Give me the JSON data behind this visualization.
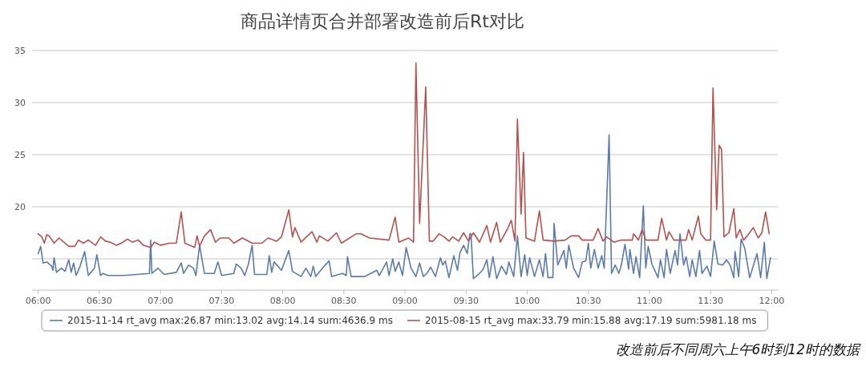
{
  "chart_data": {
    "type": "line",
    "title": "商品详情页合并部署改造前后Rt对比",
    "xlim": [
      5.95,
      12.05
    ],
    "ylim": [
      12,
      35
    ],
    "xticks": [
      {
        "value": 6,
        "label": "06:00"
      },
      {
        "value": 6.5,
        "label": "06:30"
      },
      {
        "value": 7,
        "label": "07:00"
      },
      {
        "value": 7.5,
        "label": "07:30"
      },
      {
        "value": 8,
        "label": "08:00"
      },
      {
        "value": 8.5,
        "label": "08:30"
      },
      {
        "value": 9,
        "label": "09:00"
      },
      {
        "value": 9.5,
        "label": "09:30"
      },
      {
        "value": 10,
        "label": "10:00"
      },
      {
        "value": 10.5,
        "label": "10:30"
      },
      {
        "value": 11,
        "label": "11:00"
      },
      {
        "value": 11.5,
        "label": "11:30"
      },
      {
        "value": 12,
        "label": "12:00"
      }
    ],
    "yticks": [
      {
        "value": 15,
        "label": null
      },
      20,
      25,
      30,
      35
    ],
    "grid": "y",
    "legend": "bottom",
    "line_style": "solid",
    "marker": "none",
    "annotations": [
      "改造前后不同周六上午6时到12时的数据"
    ],
    "series": [
      {
        "name": "2015-11-14 rt_avg  max:26.87 min:13.02 avg:14.14 sum:4636.9 ms",
        "color": "#5b7ba9",
        "x": [
          6.0,
          6.02,
          6.04,
          6.07,
          6.11,
          6.12,
          6.13,
          6.15,
          6.19,
          6.22,
          6.25,
          6.27,
          6.29,
          6.31,
          6.34,
          6.38,
          6.41,
          6.46,
          6.48,
          6.51,
          6.53,
          6.57,
          6.7,
          6.91,
          6.92,
          6.93,
          6.98,
          7.03,
          7.13,
          7.17,
          7.19,
          7.23,
          7.27,
          7.29,
          7.32,
          7.36,
          7.44,
          7.47,
          7.5,
          7.6,
          7.62,
          7.66,
          7.69,
          7.72,
          7.75,
          7.77,
          7.87,
          7.89,
          7.91,
          7.93,
          7.99,
          8.05,
          8.08,
          8.15,
          8.19,
          8.23,
          8.25,
          8.27,
          8.34,
          8.38,
          8.4,
          8.49,
          8.52,
          8.53,
          8.56,
          8.67,
          8.72,
          8.77,
          8.79,
          8.85,
          8.87,
          8.9,
          8.92,
          8.95,
          8.98,
          9.01,
          9.05,
          9.09,
          9.12,
          9.15,
          9.18,
          9.21,
          9.25,
          9.29,
          9.31,
          9.33,
          9.36,
          9.4,
          9.43,
          9.45,
          9.48,
          9.51,
          9.53,
          9.54,
          9.56,
          9.61,
          9.64,
          9.67,
          9.69,
          9.72,
          9.75,
          9.79,
          9.83,
          9.85,
          9.89,
          9.92,
          9.95,
          9.98,
          10.0,
          10.02,
          10.06,
          10.1,
          10.13,
          10.15,
          10.17,
          10.21,
          10.22,
          10.25,
          10.3,
          10.32,
          10.34,
          10.38,
          10.42,
          10.45,
          10.48,
          10.5,
          10.52,
          10.55,
          10.58,
          10.61,
          10.63,
          10.67,
          10.69,
          10.72,
          10.75,
          10.77,
          10.8,
          10.83,
          10.84,
          10.87,
          10.89,
          10.92,
          10.95,
          10.97,
          10.99,
          11.02,
          11.07,
          11.09,
          11.12,
          11.14,
          11.17,
          11.21,
          11.23,
          11.25,
          11.28,
          11.3,
          11.33,
          11.35,
          11.38,
          11.41,
          11.43,
          11.47,
          11.5,
          11.53,
          11.56,
          11.6,
          11.63,
          11.66,
          11.69,
          11.7,
          11.73,
          11.75,
          11.78,
          11.82,
          11.88,
          11.91,
          11.94,
          11.96,
          11.99
        ],
        "values": [
          15.5,
          16.2,
          14.6,
          14.7,
          14.3,
          13.9,
          15.1,
          13.7,
          14.1,
          13.8,
          14.9,
          13.7,
          14.6,
          13.4,
          14.2,
          15.7,
          13.4,
          14.1,
          15.4,
          13.4,
          13.6,
          13.4,
          13.4,
          13.6,
          16.8,
          13.6,
          14.1,
          13.5,
          13.7,
          14.6,
          13.6,
          14.4,
          14.1,
          13.4,
          16.3,
          13.6,
          13.6,
          14.7,
          13.4,
          13.6,
          14.5,
          14.1,
          13.4,
          14.5,
          16.3,
          13.5,
          13.5,
          15.3,
          13.7,
          14.7,
          13.9,
          15.8,
          13.8,
          13.3,
          14.1,
          13.3,
          14.3,
          13.3,
          14.3,
          14.8,
          13.3,
          13.6,
          13.4,
          15.2,
          13.3,
          13.3,
          13.6,
          13.9,
          13.4,
          14.7,
          13.4,
          15.0,
          13.8,
          14.7,
          13.4,
          16.1,
          14.1,
          13.3,
          14.6,
          13.3,
          13.6,
          14.2,
          13.3,
          15.1,
          14.4,
          14.8,
          13.2,
          15.3,
          13.9,
          15.6,
          16.3,
          15.5,
          17.4,
          17.4,
          13.1,
          13.6,
          14.0,
          14.9,
          13.2,
          15.2,
          13.1,
          14.3,
          13.5,
          14.7,
          13.3,
          17.2,
          13.3,
          15.4,
          13.4,
          15.1,
          13.3,
          14.9,
          13.3,
          15.5,
          13.2,
          13.2,
          18.4,
          14.4,
          15.8,
          14.1,
          16.3,
          14.1,
          13.2,
          14.7,
          14.8,
          16.5,
          14.1,
          15.9,
          14.1,
          15.3,
          14.1,
          26.9,
          13.6,
          14.4,
          13.6,
          14.4,
          16.4,
          14.0,
          15.9,
          13.6,
          15.2,
          13.2,
          20.1,
          14.1,
          16.2,
          14.5,
          13.2,
          14.9,
          13.2,
          15.9,
          13.6,
          15.8,
          14.4,
          17.4,
          14.4,
          15.2,
          13.3,
          14.9,
          13.3,
          15.8,
          13.6,
          14.3,
          13.3,
          16.7,
          14.5,
          14.4,
          14.9,
          14.4,
          13.2,
          15.7,
          13.3,
          16.9,
          16.0,
          13.2,
          15.5,
          13.2,
          16.6,
          13.1,
          15.1
        ]
      },
      {
        "name": "2015-08-15 rt_avg  max:33.79 min:15.88 avg:17.19 sum:5981.18 ms",
        "color": "#b5514e",
        "x": [
          6.0,
          6.03,
          6.05,
          6.07,
          6.09,
          6.13,
          6.17,
          6.25,
          6.3,
          6.33,
          6.37,
          6.41,
          6.47,
          6.51,
          6.55,
          6.59,
          6.64,
          6.68,
          6.73,
          6.77,
          6.82,
          6.86,
          6.92,
          6.95,
          7.0,
          7.07,
          7.13,
          7.17,
          7.2,
          7.28,
          7.3,
          7.32,
          7.36,
          7.41,
          7.45,
          7.49,
          7.56,
          7.6,
          7.67,
          7.75,
          7.83,
          7.88,
          7.95,
          7.99,
          8.05,
          8.08,
          8.1,
          8.15,
          8.24,
          8.28,
          8.3,
          8.37,
          8.44,
          8.48,
          8.6,
          8.64,
          8.71,
          8.87,
          8.92,
          8.95,
          9.03,
          9.07,
          9.09,
          9.12,
          9.17,
          9.2,
          9.23,
          9.28,
          9.32,
          9.36,
          9.39,
          9.44,
          9.48,
          9.52,
          9.56,
          9.61,
          9.67,
          9.7,
          9.75,
          9.78,
          9.84,
          9.87,
          9.9,
          9.92,
          9.95,
          9.97,
          9.99,
          10.06,
          10.1,
          10.13,
          10.22,
          10.31,
          10.36,
          10.42,
          10.45,
          10.54,
          10.58,
          10.62,
          10.65,
          10.71,
          10.77,
          10.86,
          10.87,
          10.91,
          10.94,
          10.97,
          11.07,
          11.1,
          11.14,
          11.16,
          11.2,
          11.3,
          11.32,
          11.35,
          11.4,
          11.42,
          11.46,
          11.5,
          11.52,
          11.55,
          11.57,
          11.59,
          11.61,
          11.65,
          11.69,
          11.71,
          11.74,
          11.77,
          11.8,
          11.85,
          11.89,
          11.92,
          11.95,
          11.98
        ],
        "values": [
          17.4,
          17.1,
          16.5,
          17.3,
          17.2,
          16.5,
          17.0,
          16.2,
          16.2,
          16.8,
          16.5,
          16.8,
          16.3,
          17.1,
          16.7,
          16.6,
          16.3,
          16.5,
          16.9,
          16.6,
          16.8,
          16.3,
          16.1,
          16.6,
          16.3,
          16.5,
          16.5,
          19.5,
          16.5,
          16.1,
          17.2,
          16.2,
          17.2,
          17.8,
          16.6,
          17.0,
          17.0,
          16.5,
          17.0,
          16.5,
          16.5,
          17.0,
          16.7,
          17.1,
          19.7,
          17.1,
          18.0,
          16.6,
          17.6,
          16.6,
          17.2,
          16.7,
          17.5,
          16.5,
          17.4,
          17.4,
          17.0,
          16.8,
          19.0,
          16.6,
          17.0,
          16.6,
          33.8,
          18.4,
          31.5,
          16.7,
          16.7,
          17.4,
          17.1,
          16.7,
          17.1,
          16.7,
          17.5,
          16.7,
          17.5,
          16.6,
          18.2,
          16.6,
          18.5,
          16.6,
          17.9,
          18.7,
          16.7,
          28.4,
          19.3,
          25.2,
          17.0,
          16.7,
          19.6,
          16.8,
          16.7,
          16.8,
          17.2,
          17.2,
          16.8,
          16.8,
          17.9,
          16.7,
          17.1,
          16.6,
          16.8,
          16.8,
          17.4,
          16.8,
          17.8,
          16.8,
          16.8,
          18.9,
          16.8,
          17.6,
          16.8,
          16.8,
          17.8,
          16.8,
          19.1,
          17.4,
          16.8,
          16.8,
          31.4,
          19.7,
          25.9,
          25.5,
          17.1,
          17.5,
          19.8,
          17.0,
          17.8,
          16.8,
          17.2,
          18.0,
          17.0,
          17.5,
          19.5,
          17.4
        ]
      }
    ]
  }
}
